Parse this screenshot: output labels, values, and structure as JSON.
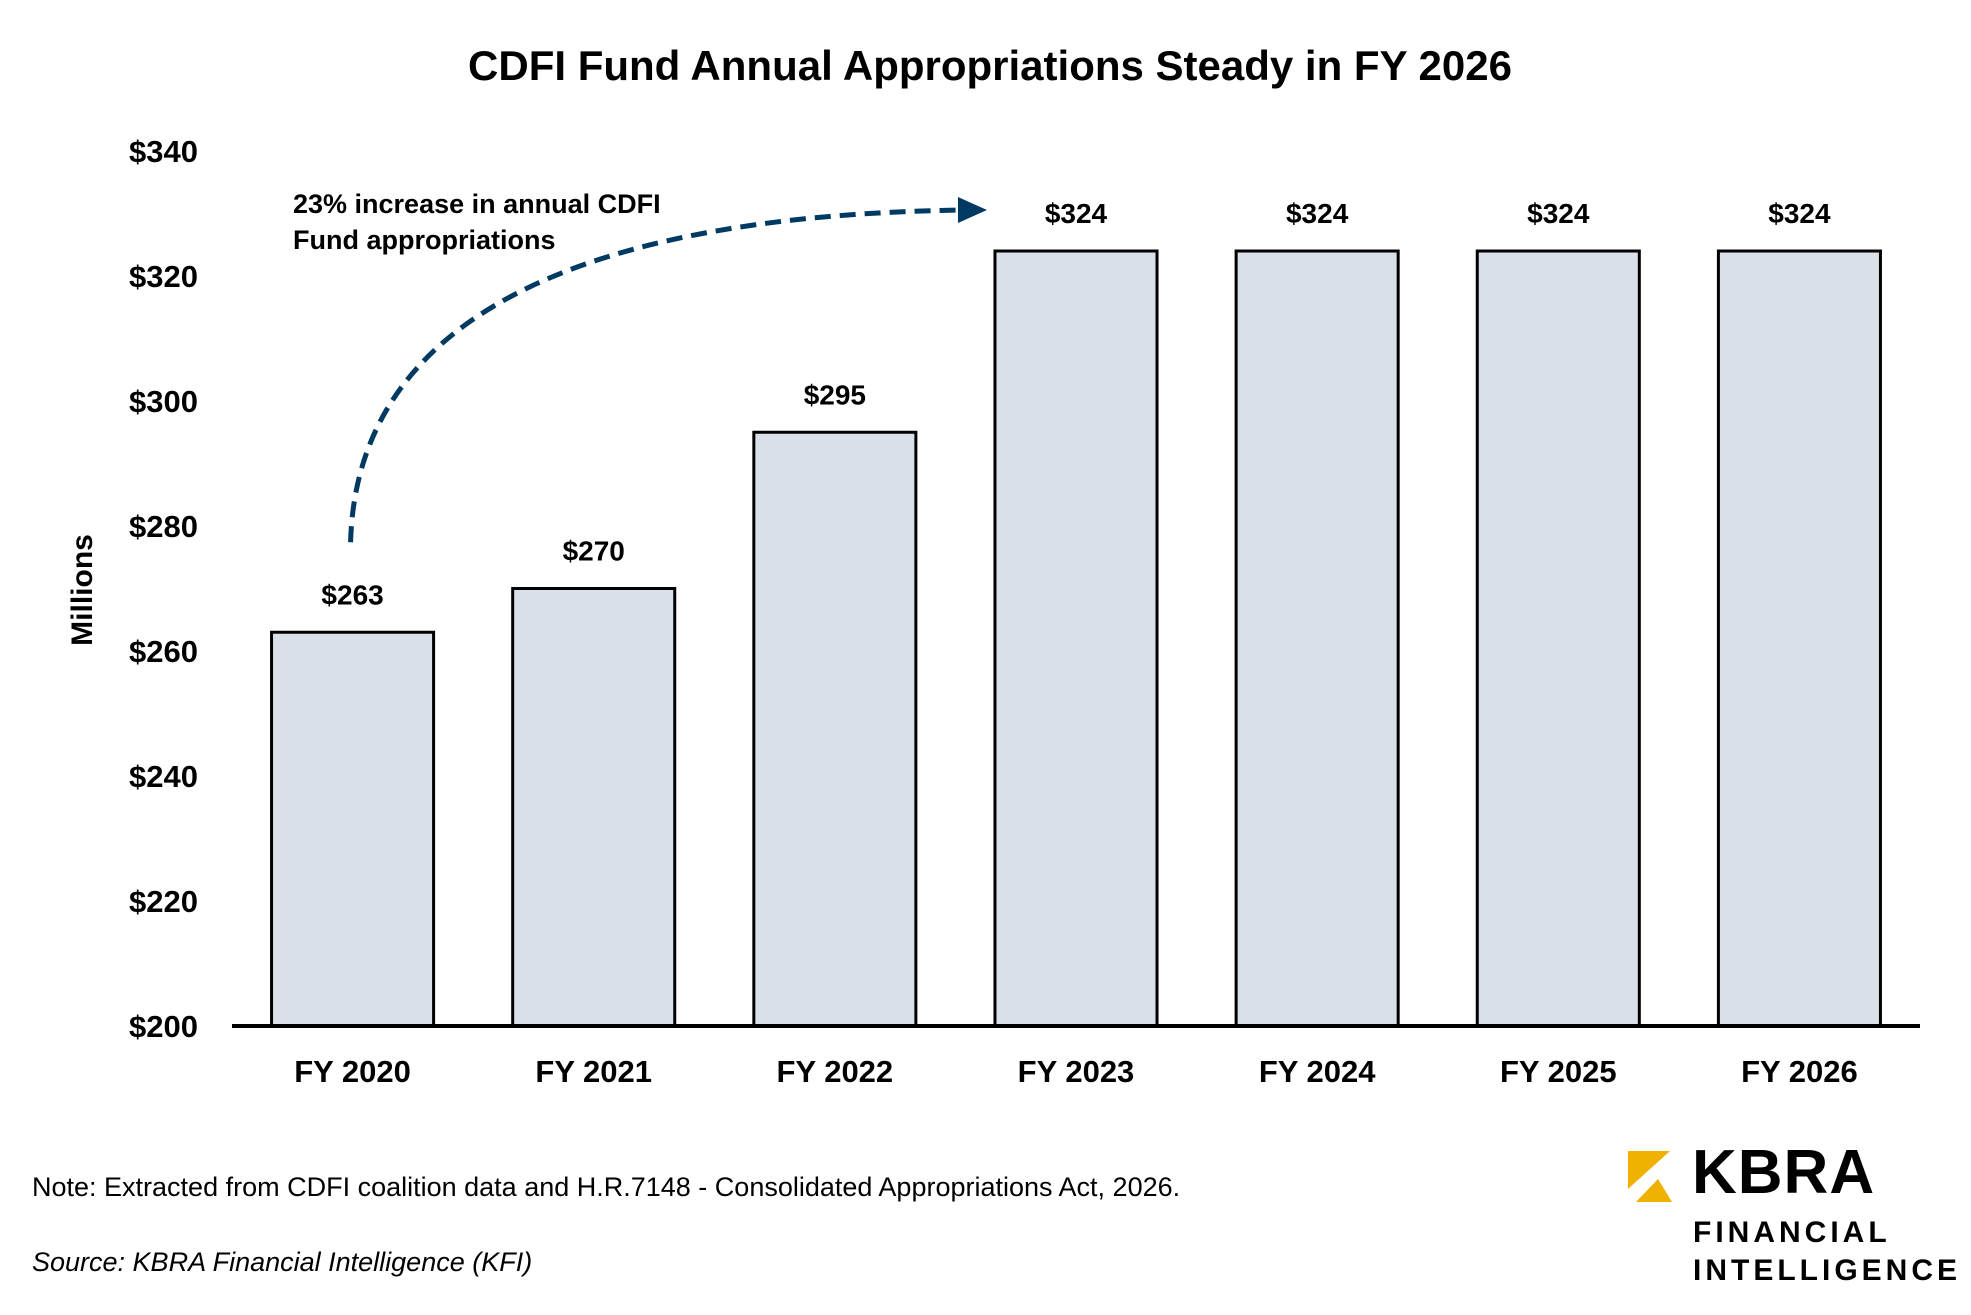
{
  "chart_data": {
    "type": "bar",
    "title": "CDFI Fund Annual Appropriations Steady in FY 2026",
    "xlabel": "",
    "ylabel": "Millions",
    "categories": [
      "FY 2020",
      "FY 2021",
      "FY 2022",
      "FY 2023",
      "FY 2024",
      "FY 2025",
      "FY 2026"
    ],
    "values": [
      263,
      270,
      295,
      324,
      324,
      324,
      324
    ],
    "data_labels": [
      "$263",
      "$270",
      "$295",
      "$324",
      "$324",
      "$324",
      "$324"
    ],
    "ylim": [
      200,
      340
    ],
    "yticks": [
      200,
      220,
      240,
      260,
      280,
      300,
      320,
      340
    ],
    "ytick_labels": [
      "$200",
      "$220",
      "$240",
      "$260",
      "$280",
      "$300",
      "$320",
      "$340"
    ],
    "grid": false,
    "legend": null,
    "annotation": {
      "lines": [
        "23% increase in annual CDFI",
        "Fund appropriations"
      ],
      "from_category": "FY 2020",
      "to_category": "FY 2023",
      "style": "dashed curved arrow"
    },
    "colors": {
      "bar_fill": "#d9e0e8",
      "bar_stroke": "#000000",
      "annotation": "#003a63"
    }
  },
  "footer": {
    "note": "Note: Extracted from CDFI coalition data and H.R.7148 - Consolidated Appropriations Act, 2026.",
    "source": "Source: KBRA Financial Intelligence (KFI)"
  },
  "logo": {
    "name": "KBRA",
    "subtitle_line1": "FINANCIAL",
    "subtitle_line2": "INTELLIGENCE",
    "mark_color": "#f0b000"
  }
}
